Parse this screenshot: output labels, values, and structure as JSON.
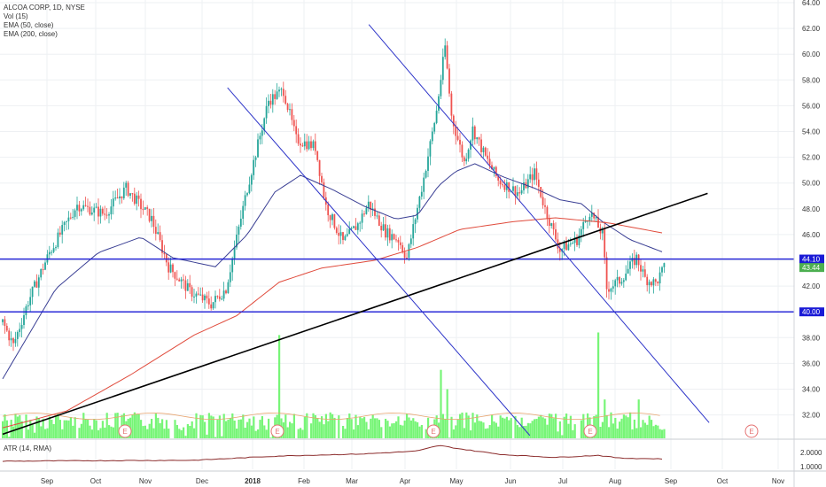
{
  "legend": {
    "symbol": "ALCOA CORP, 1D, NYSE",
    "vol": "Vol (15)",
    "ema50": "EMA (50, close)",
    "ema200": "EMA (200, close)",
    "atr": "ATR (14, RMA)"
  },
  "colors": {
    "up": "#26a69a",
    "down": "#ef5350",
    "volume": "#77f577",
    "ema50": "#3a3f94",
    "ema200": "#e04b3c",
    "level_line": "#1a1ad6",
    "trend_line": "#000000",
    "channel_line": "#2e35c9",
    "atr": "#8b2b2b",
    "earnings": "#e57373",
    "last_price_badge": "#4caf50",
    "level_badge": "#1a1ad6"
  },
  "chart_data": {
    "type": "candlestick",
    "ylim": [
      30.3,
      64.0
    ],
    "y_ticks": [
      "64.00",
      "62.00",
      "60.00",
      "58.00",
      "56.00",
      "54.00",
      "52.00",
      "50.00",
      "48.00",
      "46.00",
      "44.00",
      "42.00",
      "40.00",
      "38.00",
      "36.00",
      "34.00",
      "32.00"
    ],
    "x_ticks": [
      "Sep",
      "Oct",
      "Nov",
      "Dec",
      "2018",
      "Feb",
      "Mar",
      "Apr",
      "May",
      "Jun",
      "Jul",
      "Aug",
      "Sep",
      "Oct",
      "Nov"
    ],
    "price_badges": [
      {
        "label": "44.10",
        "value": 44.1,
        "kind": "level"
      },
      {
        "label": "43.44",
        "value": 43.44,
        "kind": "last"
      },
      {
        "label": "40.00",
        "value": 40.0,
        "kind": "level"
      }
    ],
    "horizontal_levels": [
      44.1,
      40.0
    ],
    "trend_line": {
      "from": {
        "date": "2017-08-21",
        "price": 30.5
      },
      "to": {
        "date": "2018-11-28",
        "price": 49.2
      }
    },
    "channel_lines": [
      {
        "from": {
          "date": "2018-01-16",
          "price": 57.4
        },
        "to": {
          "date": "2018-08-03",
          "price": 30.4
        }
      },
      {
        "from": {
          "date": "2018-04-19",
          "price": 62.3
        },
        "to": {
          "date": "2018-11-29",
          "price": 31.4
        }
      }
    ],
    "earnings_markers": [
      "E",
      "E",
      "E",
      "E",
      "E"
    ],
    "price_anchors": [
      [
        0,
        39.2
      ],
      [
        5,
        37.4
      ],
      [
        12,
        40.8
      ],
      [
        22,
        44.6
      ],
      [
        35,
        48.3
      ],
      [
        48,
        47.6
      ],
      [
        58,
        49.6
      ],
      [
        70,
        47.2
      ],
      [
        78,
        43.5
      ],
      [
        88,
        41.6
      ],
      [
        98,
        40.6
      ],
      [
        105,
        41.8
      ],
      [
        115,
        49.6
      ],
      [
        125,
        56.4
      ],
      [
        132,
        57.2
      ],
      [
        138,
        53.4
      ],
      [
        147,
        52.8
      ],
      [
        152,
        48.2
      ],
      [
        160,
        45.4
      ],
      [
        167,
        46.8
      ],
      [
        172,
        48.4
      ],
      [
        180,
        46.2
      ],
      [
        186,
        45.6
      ],
      [
        190,
        44.2
      ],
      [
        198,
        50.4
      ],
      [
        204,
        55.6
      ],
      [
        208,
        60.6
      ],
      [
        211,
        55.2
      ],
      [
        217,
        51.6
      ],
      [
        221,
        54.2
      ],
      [
        227,
        52.0
      ],
      [
        233,
        50.2
      ],
      [
        243,
        49.2
      ],
      [
        250,
        50.8
      ],
      [
        255,
        48.0
      ],
      [
        262,
        44.8
      ],
      [
        270,
        45.6
      ],
      [
        276,
        47.8
      ],
      [
        282,
        46.0
      ],
      [
        284,
        41.8
      ],
      [
        290,
        42.4
      ],
      [
        298,
        44.2
      ],
      [
        302,
        42.6
      ],
      [
        307,
        42.2
      ],
      [
        311,
        43.4
      ]
    ],
    "ema50_anchors": [
      [
        0,
        34.8
      ],
      [
        10,
        37.6
      ],
      [
        25,
        41.8
      ],
      [
        45,
        44.6
      ],
      [
        65,
        45.8
      ],
      [
        80,
        44.2
      ],
      [
        100,
        43.5
      ],
      [
        115,
        46.0
      ],
      [
        128,
        49.3
      ],
      [
        140,
        50.6
      ],
      [
        155,
        49.5
      ],
      [
        170,
        48.2
      ],
      [
        185,
        47.2
      ],
      [
        195,
        47.5
      ],
      [
        205,
        49.8
      ],
      [
        213,
        50.9
      ],
      [
        222,
        51.5
      ],
      [
        235,
        50.5
      ],
      [
        250,
        49.6
      ],
      [
        262,
        48.7
      ],
      [
        272,
        48.4
      ],
      [
        282,
        47.0
      ],
      [
        295,
        45.6
      ],
      [
        311,
        44.6
      ]
    ],
    "ema200_anchors": [
      [
        0,
        31.0
      ],
      [
        30,
        32.3
      ],
      [
        60,
        35.1
      ],
      [
        90,
        38.2
      ],
      [
        110,
        39.7
      ],
      [
        130,
        42.3
      ],
      [
        150,
        43.4
      ],
      [
        175,
        44.0
      ],
      [
        195,
        45.0
      ],
      [
        215,
        46.4
      ],
      [
        240,
        47.0
      ],
      [
        260,
        47.3
      ],
      [
        285,
        46.9
      ],
      [
        311,
        46.1
      ]
    ],
    "atr_anchors": [
      [
        0,
        1.38
      ],
      [
        40,
        1.42
      ],
      [
        90,
        1.45
      ],
      [
        130,
        1.75
      ],
      [
        170,
        1.9
      ],
      [
        195,
        2.1
      ],
      [
        205,
        2.5
      ],
      [
        215,
        2.25
      ],
      [
        235,
        1.85
      ],
      [
        260,
        1.65
      ],
      [
        280,
        1.8
      ],
      [
        290,
        1.6
      ],
      [
        311,
        1.55
      ]
    ],
    "volume_spikes": [
      [
        130,
        38.2
      ],
      [
        206,
        35.5
      ],
      [
        209,
        34.0
      ],
      [
        280,
        38.4
      ],
      [
        283,
        33.2
      ],
      [
        299,
        33.2
      ]
    ]
  },
  "atr_axis": {
    "ticks": [
      "2.0000",
      "1.0000"
    ]
  }
}
